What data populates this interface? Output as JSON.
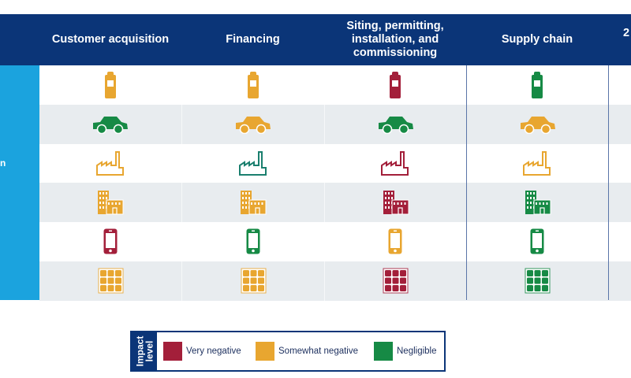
{
  "colors": {
    "very_negative": "#a31f3a",
    "somewhat_negative": "#e8a630",
    "negligible": "#168a45",
    "negligible_teal": "#1a7f6e",
    "header_bg": "#0b3578",
    "side_bg": "#1ba3de"
  },
  "header": {
    "columns": [
      "Customer acquisition",
      "Financing",
      "Siting, permitting, installation, and commissioning",
      "Supply chain",
      "2"
    ]
  },
  "side_label": "n",
  "matrix": {
    "rows": [
      {
        "icon": "battery",
        "levels": [
          "somewhat_negative",
          "somewhat_negative",
          "very_negative",
          "negligible"
        ]
      },
      {
        "icon": "car",
        "levels": [
          "negligible",
          "somewhat_negative",
          "negligible",
          "somewhat_negative"
        ]
      },
      {
        "icon": "factory",
        "levels": [
          "somewhat_negative",
          "negligible_teal",
          "very_negative",
          "somewhat_negative"
        ]
      },
      {
        "icon": "buildings",
        "levels": [
          "somewhat_negative",
          "somewhat_negative",
          "very_negative",
          "negligible"
        ]
      },
      {
        "icon": "phone",
        "levels": [
          "very_negative",
          "negligible",
          "somewhat_negative",
          "negligible"
        ]
      },
      {
        "icon": "solar-panel",
        "levels": [
          "somewhat_negative",
          "somewhat_negative",
          "very_negative",
          "negligible"
        ]
      }
    ]
  },
  "legend": {
    "title": "Impact level",
    "items": [
      {
        "label": "Very negative",
        "level": "very_negative"
      },
      {
        "label": "Somewhat negative",
        "level": "somewhat_negative"
      },
      {
        "label": "Negligible",
        "level": "negligible"
      }
    ]
  }
}
